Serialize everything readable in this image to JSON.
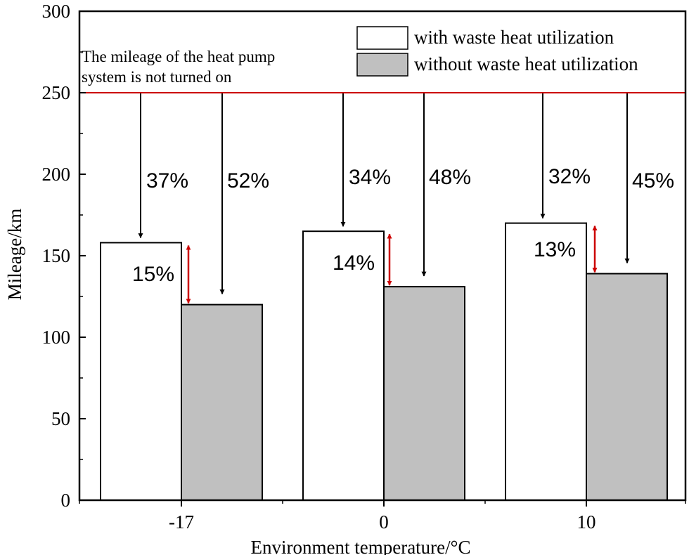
{
  "chart_data": {
    "type": "bar",
    "xlabel": "Environment temperature/°C",
    "ylabel": "Mileage/km",
    "ylim": [
      0,
      300
    ],
    "yticks": [
      0,
      50,
      100,
      150,
      200,
      250,
      300
    ],
    "categories": [
      "-17",
      "0",
      "10"
    ],
    "series": [
      {
        "name": "with waste heat utilization",
        "values": [
          158,
          165,
          170
        ],
        "color": "#ffffff"
      },
      {
        "name": "without waste heat utilization",
        "values": [
          120,
          131,
          139
        ],
        "color": "#c0c0c0"
      }
    ],
    "reference_line": {
      "value": 250,
      "color": "#cc0000",
      "label_line1": "The mileage of the heat pump",
      "label_line2": "system is not turned on"
    },
    "drop_labels": {
      "with": [
        "37%",
        "34%",
        "32%"
      ],
      "without": [
        "52%",
        "48%",
        "45%"
      ]
    },
    "gap_labels": [
      "15%",
      "14%",
      "13%"
    ],
    "legend_position": "top-right",
    "grid": false
  }
}
